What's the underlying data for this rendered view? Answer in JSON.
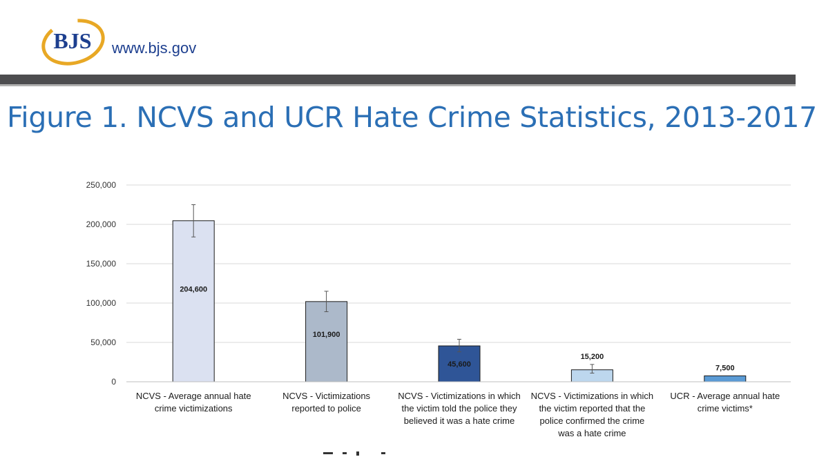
{
  "header": {
    "logo_text": "BJS",
    "site_url": "www.bjs.gov"
  },
  "colors": {
    "brand_blue": "#1d3f8f",
    "title_blue": "#2b6fb5",
    "logo_gold": "#e8a825",
    "header_bar": "#4d4d4f"
  },
  "title": "Figure 1. NCVS and UCR Hate Crime Statistics, 2013-2017",
  "chart_data": {
    "type": "bar",
    "title": "Figure 1. NCVS and UCR Hate Crime Statistics, 2013-2017",
    "xlabel": "",
    "ylabel": "",
    "ylim": [
      0,
      250000
    ],
    "yticks": [
      "250,000",
      "200,000",
      "150,000",
      "100,000",
      "50,000",
      "0"
    ],
    "grid": true,
    "categories": [
      [
        "NCVS - Average annual hate",
        "crime victimizations"
      ],
      [
        "NCVS - Victimizations",
        "reported to police"
      ],
      [
        "NCVS - Victimizations in which",
        "the victim told the police they",
        "believed it was a hate crime"
      ],
      [
        "NCVS - Victimizations in which",
        "the victim reported that the",
        "police confirmed the crime",
        "was a hate crime"
      ],
      [
        "UCR - Average annual hate",
        "crime victims*"
      ]
    ],
    "values": [
      204600,
      101900,
      45600,
      15200,
      7500
    ],
    "value_labels": [
      "204,600",
      "101,900",
      "45,600",
      "15,200",
      "7,500"
    ],
    "error_low": [
      184000,
      89000,
      38000,
      11000,
      null
    ],
    "error_high": [
      225000,
      115000,
      54000,
      22000,
      null
    ],
    "bar_colors": [
      "#dbe1f1",
      "#acb9ca",
      "#2f5597",
      "#bdd7ee",
      "#5b9bd5"
    ]
  }
}
